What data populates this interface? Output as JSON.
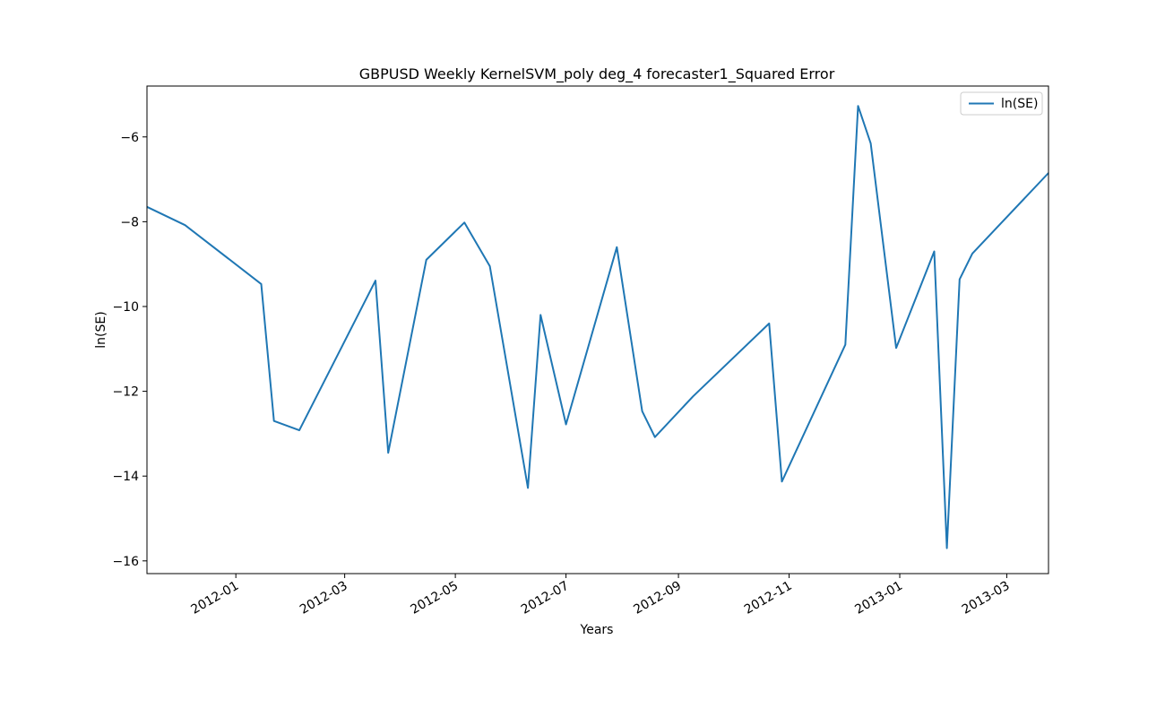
{
  "chart_data": {
    "type": "line",
    "title": "GBPUSD Weekly KernelSVM_poly deg_4 forecaster1_Squared Error",
    "xlabel": "Years",
    "ylabel": "ln(SE)",
    "legend_position": "top-right",
    "grid": false,
    "x_is_date": true,
    "xlim": [
      "2011-11-13",
      "2013-03-24"
    ],
    "ylim": [
      -16.3,
      -4.8
    ],
    "x_ticks": [
      "2012-01-01",
      "2012-03-01",
      "2012-05-01",
      "2012-07-01",
      "2012-09-01",
      "2012-11-01",
      "2013-01-01",
      "2013-03-01"
    ],
    "x_tick_labels": [
      "2012-01",
      "2012-03",
      "2012-05",
      "2012-07",
      "2012-09",
      "2012-11",
      "2013-01",
      "2013-03"
    ],
    "y_ticks": [
      -16,
      -14,
      -12,
      -10,
      -8,
      -6
    ],
    "y_tick_labels": [
      "−16",
      "−14",
      "−12",
      "−10",
      "−8",
      "−6"
    ],
    "series": [
      {
        "name": "ln(SE)",
        "color": "#1f77b4",
        "points": [
          {
            "x": "2011-11-13",
            "y": -7.65
          },
          {
            "x": "2011-12-04",
            "y": -8.08
          },
          {
            "x": "2012-01-15",
            "y": -9.47
          },
          {
            "x": "2012-01-22",
            "y": -12.7
          },
          {
            "x": "2012-02-05",
            "y": -12.92
          },
          {
            "x": "2012-03-18",
            "y": -9.39
          },
          {
            "x": "2012-03-25",
            "y": -13.45
          },
          {
            "x": "2012-04-15",
            "y": -8.9
          },
          {
            "x": "2012-05-06",
            "y": -8.02
          },
          {
            "x": "2012-05-20",
            "y": -9.05
          },
          {
            "x": "2012-06-10",
            "y": -14.28
          },
          {
            "x": "2012-06-17",
            "y": -10.2
          },
          {
            "x": "2012-07-01",
            "y": -12.78
          },
          {
            "x": "2012-07-29",
            "y": -8.6
          },
          {
            "x": "2012-08-12",
            "y": -12.47
          },
          {
            "x": "2012-08-19",
            "y": -13.08
          },
          {
            "x": "2012-09-09",
            "y": -12.12
          },
          {
            "x": "2012-10-21",
            "y": -10.4
          },
          {
            "x": "2012-10-28",
            "y": -14.13
          },
          {
            "x": "2012-12-02",
            "y": -10.9
          },
          {
            "x": "2012-12-09",
            "y": -5.27
          },
          {
            "x": "2012-12-16",
            "y": -6.15
          },
          {
            "x": "2012-12-30",
            "y": -10.98
          },
          {
            "x": "2013-01-20",
            "y": -8.7
          },
          {
            "x": "2013-01-27",
            "y": -15.7
          },
          {
            "x": "2013-02-03",
            "y": -9.36
          },
          {
            "x": "2013-02-10",
            "y": -8.75
          },
          {
            "x": "2013-03-24",
            "y": -6.85
          }
        ]
      }
    ]
  }
}
